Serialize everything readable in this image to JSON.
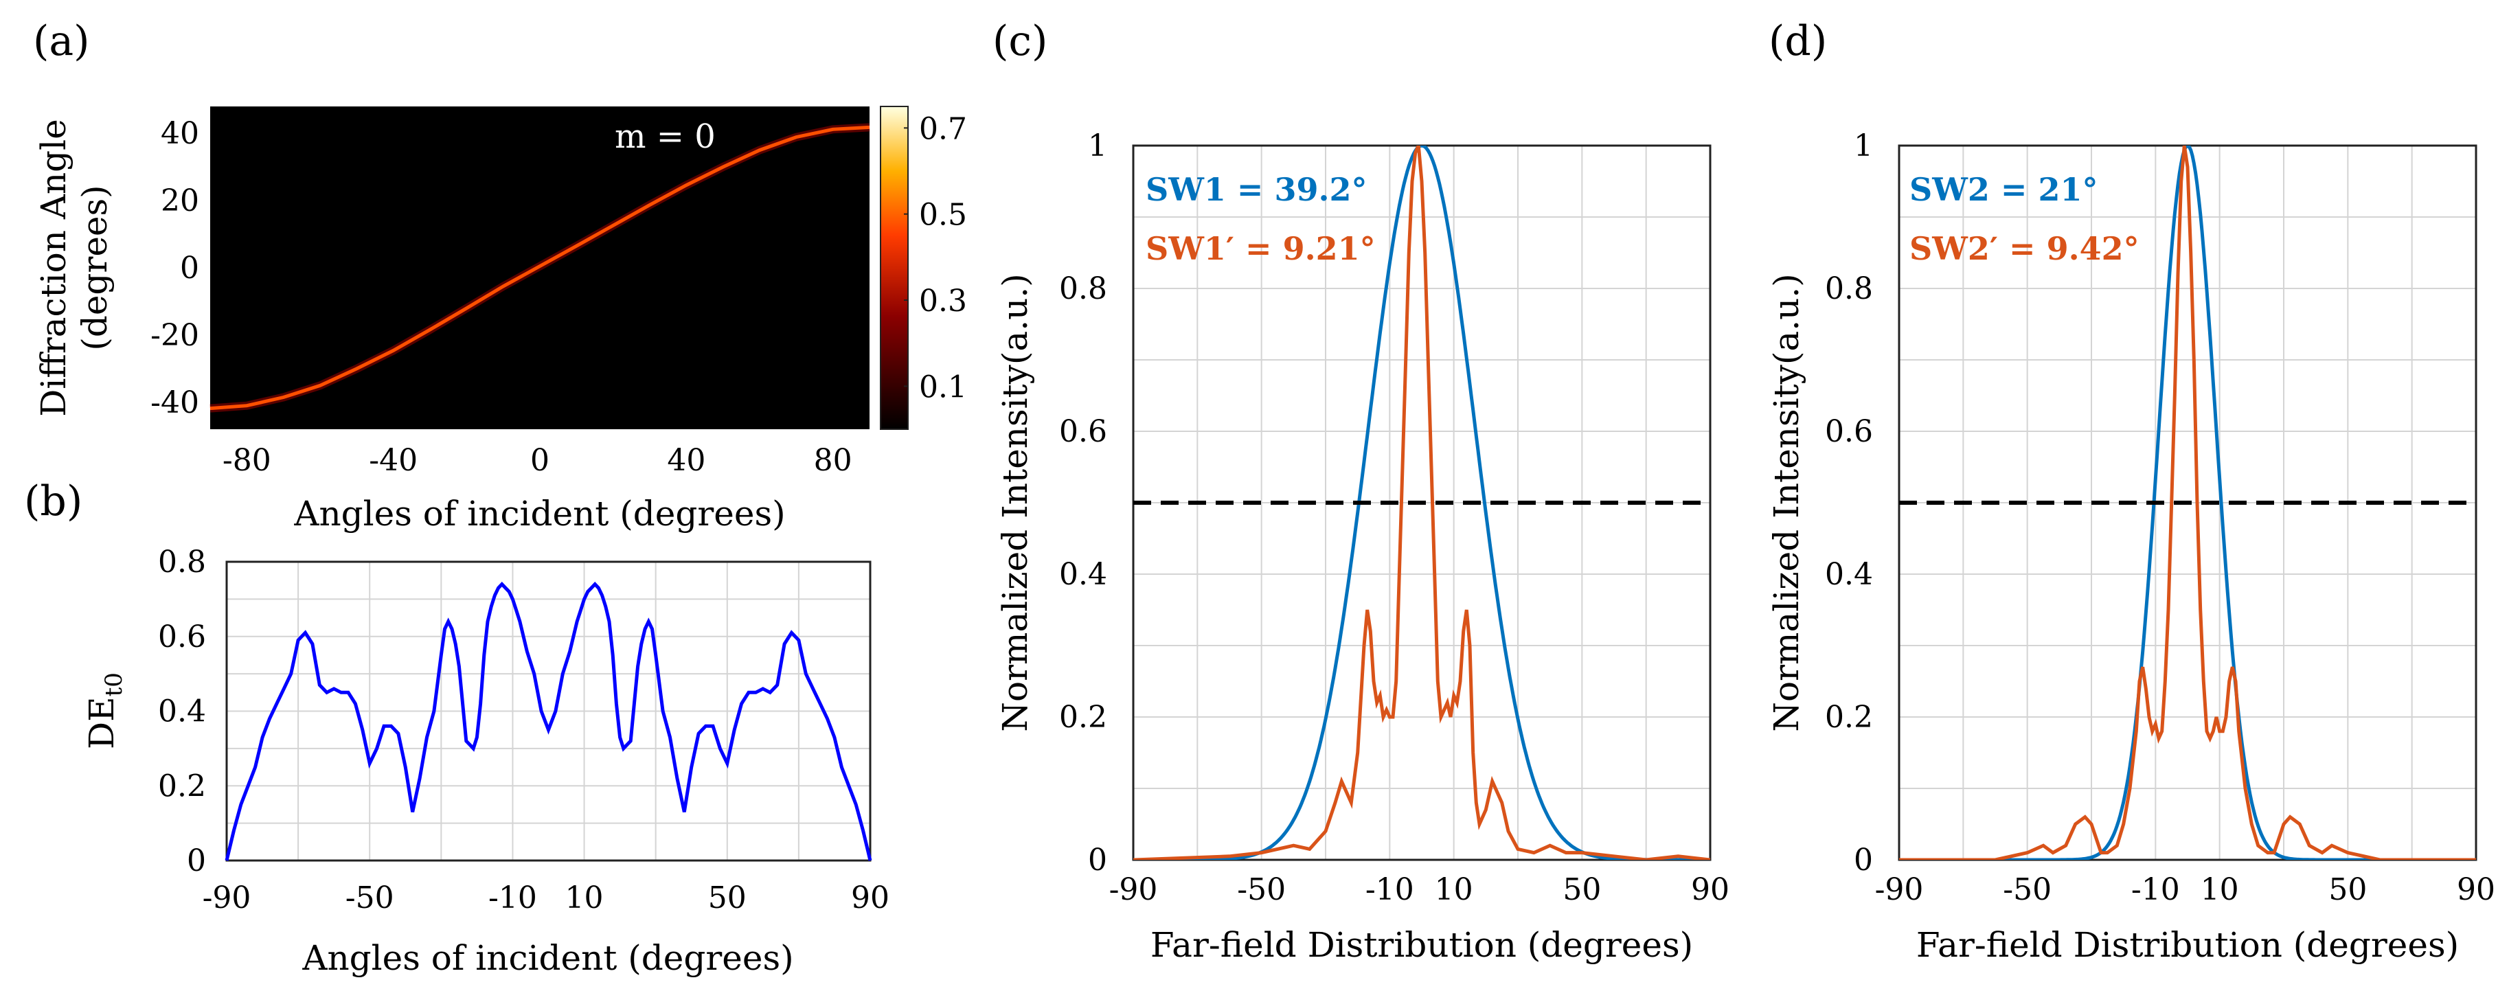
{
  "colors": {
    "blue_plot": "#0000ff",
    "series_blue": "#0072bd",
    "series_orange": "#d95319",
    "heatmap_bg": "#000000"
  },
  "chart_data": [
    {
      "panel": "(a)",
      "type": "heatmap",
      "title": "",
      "xlabel": "Angles of incident (degrees)",
      "ylabel_line1": "Diffraction Angle",
      "ylabel_line2": "(degrees)",
      "xlim": [
        -90,
        90
      ],
      "ylim": [
        -48,
        48
      ],
      "xticks": [
        "-80",
        "-40",
        "0",
        "40",
        "80"
      ],
      "yticks": [
        "40",
        "20",
        "0",
        "-20",
        "-40"
      ],
      "annotation": "m = 0",
      "colorbar_ticks": [
        "0.7",
        "0.5",
        "0.3",
        "0.1"
      ],
      "colorbar_range": [
        0,
        0.75
      ],
      "ridge": {
        "x": [
          -90,
          -80,
          -70,
          -60,
          -50,
          -40,
          -30,
          -20,
          -10,
          0,
          10,
          20,
          30,
          40,
          50,
          60,
          70,
          80,
          90
        ],
        "y": [
          -41.8,
          -41.0,
          -38.5,
          -35.0,
          -30.0,
          -24.6,
          -18.4,
          -12.0,
          -5.5,
          0.5,
          6.5,
          12.6,
          18.7,
          24.6,
          30.0,
          35.0,
          38.9,
          41.2,
          41.8
        ],
        "intensity": [
          0.45,
          0.55,
          0.45,
          0.4,
          0.45,
          0.5,
          0.55,
          0.6,
          0.55,
          0.5,
          0.55,
          0.6,
          0.58,
          0.55,
          0.55,
          0.6,
          0.65,
          0.6,
          0.5
        ]
      }
    },
    {
      "panel": "(b)",
      "type": "line",
      "title": "",
      "xlabel": "Angles of incident (degrees)",
      "ylabel_main": "DE",
      "ylabel_sub": "t0",
      "xlim": [
        -90,
        90
      ],
      "ylim": [
        0,
        0.8
      ],
      "xticks": [
        "-90",
        "-50",
        "-10",
        "10",
        "50",
        "90"
      ],
      "xtick_values": [
        -90,
        -50,
        -10,
        10,
        50,
        90
      ],
      "yticks": [
        "0.8",
        "0.6",
        "0.4",
        "0.2",
        "0"
      ],
      "ytick_values": [
        0.8,
        0.6,
        0.4,
        0.2,
        0
      ],
      "grid": true,
      "series": [
        {
          "name": "DE t0",
          "color": "#0000ff",
          "x": [
            0,
            2,
            4,
            6,
            8,
            9,
            10,
            11,
            12,
            13,
            14,
            15,
            16,
            17,
            18,
            19,
            20,
            21,
            22,
            23,
            24,
            25,
            26,
            27,
            28,
            29,
            30,
            32,
            34,
            36,
            38,
            40,
            42,
            44,
            46,
            48,
            50,
            52,
            54,
            56,
            58,
            60,
            62,
            64,
            66,
            68,
            70,
            72,
            74,
            76,
            78,
            80,
            82,
            84,
            86,
            88,
            90
          ],
          "y": [
            0.35,
            0.4,
            0.5,
            0.56,
            0.64,
            0.67,
            0.7,
            0.72,
            0.73,
            0.74,
            0.73,
            0.71,
            0.68,
            0.64,
            0.55,
            0.42,
            0.33,
            0.3,
            0.31,
            0.32,
            0.42,
            0.52,
            0.58,
            0.62,
            0.64,
            0.62,
            0.55,
            0.4,
            0.33,
            0.22,
            0.13,
            0.25,
            0.34,
            0.36,
            0.36,
            0.3,
            0.26,
            0.35,
            0.42,
            0.45,
            0.45,
            0.46,
            0.45,
            0.47,
            0.58,
            0.61,
            0.59,
            0.5,
            0.46,
            0.42,
            0.38,
            0.33,
            0.25,
            0.2,
            0.15,
            0.08,
            0.0
          ]
        }
      ]
    },
    {
      "panel": "(c)",
      "type": "line",
      "title": "",
      "xlabel": "Far-field Distribution (degrees)",
      "ylabel": "Normalized Intensity(a.u.)",
      "xlim": [
        -90,
        90
      ],
      "ylim": [
        0,
        1
      ],
      "xticks": [
        "-90",
        "-50",
        "-10",
        "10",
        "50",
        "90"
      ],
      "xtick_values": [
        -90,
        -50,
        -10,
        10,
        50,
        90
      ],
      "yticks": [
        "1",
        "0.8",
        "0.6",
        "0.4",
        "0.2",
        "0"
      ],
      "ytick_values": [
        1,
        0.8,
        0.6,
        0.4,
        0.2,
        0
      ],
      "grid": true,
      "reference_line_y": 0.5,
      "annotations": [
        "SW1 = 39.2°",
        "SW1′ = 9.21°"
      ],
      "series": [
        {
          "name": "SW1",
          "color": "#0072bd",
          "shape": "gaussian",
          "center": 0,
          "fwhm": 39.2
        },
        {
          "name": "SW1′",
          "color": "#d95319",
          "x": [
            -90,
            -60,
            -50,
            -40,
            -35,
            -30,
            -27,
            -25,
            -22,
            -20,
            -18,
            -17,
            -16,
            -15,
            -14,
            -13,
            -12,
            -11,
            -10,
            -9,
            -8,
            -7,
            -6,
            -5,
            -4,
            -3,
            -2,
            -1,
            0,
            1,
            2,
            3,
            4,
            5,
            6,
            7,
            8,
            9,
            10,
            11,
            12,
            13,
            14,
            15,
            16,
            17,
            18,
            20,
            22,
            25,
            27,
            30,
            35,
            40,
            45,
            50,
            60,
            70,
            80,
            90
          ],
          "y": [
            0.0,
            0.005,
            0.01,
            0.02,
            0.015,
            0.04,
            0.08,
            0.11,
            0.08,
            0.15,
            0.3,
            0.35,
            0.32,
            0.25,
            0.22,
            0.23,
            0.2,
            0.21,
            0.2,
            0.2,
            0.25,
            0.4,
            0.55,
            0.7,
            0.85,
            0.95,
            0.99,
            1.0,
            0.95,
            0.85,
            0.7,
            0.55,
            0.4,
            0.25,
            0.2,
            0.21,
            0.22,
            0.2,
            0.23,
            0.22,
            0.25,
            0.32,
            0.35,
            0.3,
            0.15,
            0.08,
            0.05,
            0.07,
            0.11,
            0.08,
            0.04,
            0.015,
            0.01,
            0.02,
            0.01,
            0.01,
            0.005,
            0.0,
            0.005,
            0.0
          ]
        }
      ]
    },
    {
      "panel": "(d)",
      "type": "line",
      "title": "",
      "xlabel": "Far-field Distribution (degrees)",
      "ylabel": "Normalized Intensity(a.u.)",
      "xlim": [
        -90,
        90
      ],
      "ylim": [
        0,
        1
      ],
      "xticks": [
        "-90",
        "-50",
        "-10",
        "10",
        "50",
        "90"
      ],
      "xtick_values": [
        -90,
        -50,
        -10,
        10,
        50,
        90
      ],
      "yticks": [
        "1",
        "0.8",
        "0.6",
        "0.4",
        "0.2",
        "0"
      ],
      "ytick_values": [
        1,
        0.8,
        0.6,
        0.4,
        0.2,
        0
      ],
      "grid": true,
      "reference_line_y": 0.5,
      "annotations": [
        "SW2 = 21°",
        "SW2′ = 9.42°"
      ],
      "series": [
        {
          "name": "SW2",
          "color": "#0072bd",
          "shape": "gaussian",
          "center": 0,
          "fwhm": 21
        },
        {
          "name": "SW2′",
          "color": "#d95319",
          "x": [
            -90,
            -60,
            -50,
            -45,
            -42,
            -38,
            -35,
            -32,
            -30,
            -27,
            -25,
            -22,
            -20,
            -18,
            -16,
            -15,
            -14,
            -13,
            -12,
            -11,
            -10,
            -9,
            -8,
            -7,
            -6,
            -5,
            -4,
            -3,
            -2,
            -1,
            0,
            1,
            2,
            3,
            4,
            5,
            6,
            7,
            8,
            9,
            10,
            11,
            12,
            13,
            14,
            15,
            16,
            18,
            20,
            22,
            25,
            27,
            30,
            32,
            35,
            38,
            42,
            45,
            50,
            60,
            90
          ],
          "y": [
            0.0,
            0.0,
            0.01,
            0.02,
            0.01,
            0.02,
            0.05,
            0.06,
            0.05,
            0.01,
            0.01,
            0.02,
            0.05,
            0.1,
            0.18,
            0.25,
            0.27,
            0.24,
            0.2,
            0.18,
            0.19,
            0.17,
            0.18,
            0.25,
            0.35,
            0.5,
            0.65,
            0.82,
            0.95,
            1.0,
            0.97,
            0.85,
            0.7,
            0.5,
            0.35,
            0.25,
            0.18,
            0.17,
            0.18,
            0.2,
            0.18,
            0.18,
            0.2,
            0.25,
            0.27,
            0.25,
            0.18,
            0.1,
            0.05,
            0.02,
            0.01,
            0.01,
            0.05,
            0.06,
            0.05,
            0.02,
            0.01,
            0.02,
            0.01,
            0.0,
            0.0
          ]
        }
      ]
    }
  ]
}
